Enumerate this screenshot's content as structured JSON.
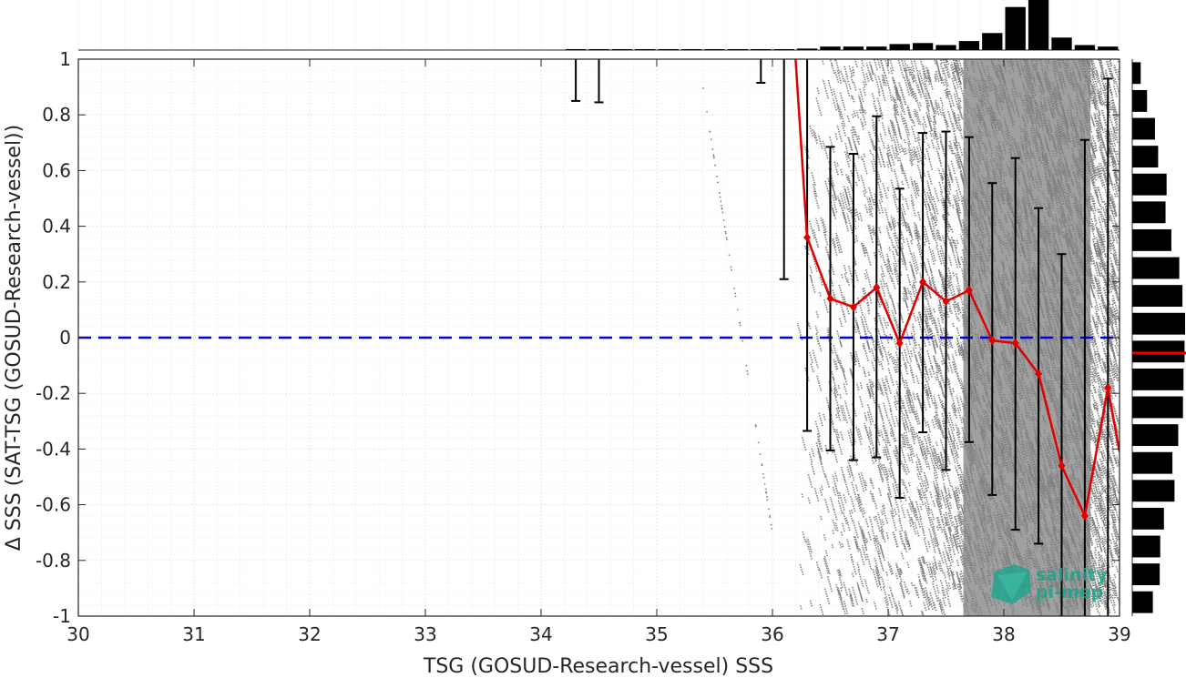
{
  "chart_data": {
    "type": "scatter",
    "title": "",
    "xlabel": "TSG (GOSUD-Research-vessel) SSS",
    "ylabel": "Δ SSS (SAT-TSG (GOSUD-Research-vessel))",
    "xlim": [
      30,
      39
    ],
    "ylim": [
      -1,
      1
    ],
    "x_ticks": [
      "30",
      "31",
      "32",
      "33",
      "34",
      "35",
      "36",
      "37",
      "38",
      "39"
    ],
    "y_ticks": [
      "-1",
      "-0.8",
      "-0.6",
      "-0.4",
      "-0.2",
      "0",
      "0.2",
      "0.4",
      "0.6",
      "0.8",
      "1"
    ],
    "grid": true,
    "zero_line": {
      "y": 0,
      "color": "#0000dd",
      "style": "dashed"
    },
    "scatter": {
      "color": "#808080",
      "x_range": [
        36.2,
        39
      ],
      "density_note": "dense cloud of points"
    },
    "binned_mean": {
      "color": "#e00000",
      "x": [
        36.3,
        36.5,
        36.7,
        36.9,
        37.1,
        37.3,
        37.5,
        37.7,
        37.9,
        38.1,
        38.3,
        38.5,
        38.7,
        38.9
      ],
      "y": [
        0.36,
        0.14,
        0.11,
        0.18,
        -0.02,
        0.2,
        0.13,
        0.17,
        -0.01,
        -0.02,
        -0.13,
        -0.46,
        -0.64,
        -0.18
      ],
      "line_extension": [
        [
          36.2,
          1.0
        ],
        [
          36.3,
          0.36
        ],
        [
          38.9,
          -0.18
        ],
        [
          39.0,
          -0.41
        ]
      ]
    },
    "error_bars": [
      {
        "x": 34.3,
        "low": 0.85,
        "high": 1.0
      },
      {
        "x": 34.5,
        "low": 0.845,
        "high": 1.0
      },
      {
        "x": 35.9,
        "low": 0.915,
        "high": 1.0
      },
      {
        "x": 36.1,
        "low": 0.21,
        "high": 1.0
      },
      {
        "x": 36.3,
        "low": -0.335,
        "high": 1.0
      },
      {
        "x": 36.5,
        "low": -0.405,
        "high": 0.685
      },
      {
        "x": 36.7,
        "low": -0.44,
        "high": 0.66
      },
      {
        "x": 36.9,
        "low": -0.43,
        "high": 0.795
      },
      {
        "x": 37.1,
        "low": -0.575,
        "high": 0.535
      },
      {
        "x": 37.3,
        "low": -0.34,
        "high": 0.735
      },
      {
        "x": 37.5,
        "low": -0.475,
        "high": 0.74
      },
      {
        "x": 37.7,
        "low": -0.375,
        "high": 0.72
      },
      {
        "x": 37.9,
        "low": -0.565,
        "high": 0.555
      },
      {
        "x": 38.1,
        "low": -0.69,
        "high": 0.645
      },
      {
        "x": 38.3,
        "low": -0.74,
        "high": 0.465
      },
      {
        "x": 38.5,
        "low": -1.0,
        "high": 0.3
      },
      {
        "x": 38.7,
        "low": -1.0,
        "high": 0.71
      },
      {
        "x": 38.9,
        "low": -1.0,
        "high": 0.93
      }
    ],
    "top_histogram": {
      "color": "#000000",
      "bins_x": [
        34.3,
        34.5,
        34.7,
        34.9,
        35.1,
        35.3,
        35.5,
        35.7,
        35.9,
        36.1,
        36.3,
        36.5,
        36.7,
        36.9,
        37.1,
        37.3,
        37.5,
        37.7,
        37.9,
        38.1,
        38.3,
        38.5,
        38.7,
        38.9
      ],
      "relative_counts": [
        0.01,
        0.01,
        0.0,
        0.0,
        0.0,
        0.0,
        0.0,
        0.0,
        0.01,
        0.01,
        0.03,
        0.07,
        0.07,
        0.07,
        0.12,
        0.14,
        0.1,
        0.18,
        0.34,
        0.86,
        1.0,
        0.25,
        0.1,
        0.07
      ]
    },
    "right_histogram": {
      "color": "#000000",
      "bins_y": [
        0.95,
        0.85,
        0.75,
        0.65,
        0.55,
        0.45,
        0.35,
        0.25,
        0.15,
        0.05,
        -0.05,
        -0.15,
        -0.25,
        -0.35,
        -0.45,
        -0.55,
        -0.65,
        -0.75,
        -0.85,
        -0.95
      ],
      "relative_counts": [
        0.16,
        0.28,
        0.43,
        0.49,
        0.65,
        0.63,
        0.74,
        0.89,
        0.95,
        1.0,
        0.99,
        0.97,
        0.96,
        0.87,
        0.76,
        0.8,
        0.6,
        0.53,
        0.52,
        0.39
      ],
      "median_marker": {
        "y": -0.055,
        "color": "#e00000"
      }
    }
  },
  "logo": {
    "line1": "salinity",
    "line2": "pi-mep",
    "color": "#1aa58c"
  }
}
